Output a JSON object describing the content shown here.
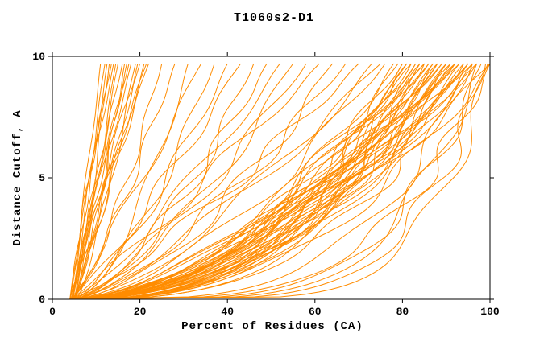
{
  "title": "T1060s2-D1",
  "chart_data": {
    "type": "line",
    "title": "T1060s2-D1",
    "xlabel": "Percent of Residues (CA)",
    "ylabel": "Distance Cutoff, A",
    "xlim": [
      0,
      100
    ],
    "ylim": [
      0,
      10
    ],
    "xticks": [
      0,
      20,
      40,
      60,
      80,
      100
    ],
    "yticks": [
      0,
      5,
      10
    ],
    "grid": false,
    "legend": "none",
    "curve_color": "#ff8c00",
    "axis_color": "#000000",
    "curve_top_y": 9.7,
    "curve_model": "x(y) = x0 + (x_top - x0) * (y/curve_top_y)^q ; one curve per model, percent of CA residues under distance cutoff",
    "curves": [
      [
        4,
        11,
        0.9
      ],
      [
        4.5,
        12,
        1
      ],
      [
        5,
        13,
        0.85
      ],
      [
        4,
        14,
        1.1
      ],
      [
        5,
        15,
        0.95
      ],
      [
        4.5,
        16,
        1.05
      ],
      [
        5,
        17,
        0.9
      ],
      [
        4,
        18,
        1
      ],
      [
        5.5,
        19,
        0.8
      ],
      [
        4.5,
        20,
        1.15
      ],
      [
        5,
        21,
        0.95
      ],
      [
        4,
        22,
        1
      ],
      [
        4.2,
        13.5,
        1.2
      ],
      [
        4.8,
        16.5,
        0.75
      ],
      [
        4.6,
        12.5,
        1
      ],
      [
        5.2,
        14.5,
        0.9
      ],
      [
        4.3,
        17.5,
        1.05
      ],
      [
        5,
        19.5,
        0.85
      ],
      [
        4.7,
        21.5,
        1.1
      ],
      [
        4,
        25,
        0.7
      ],
      [
        4.5,
        28,
        0.8
      ],
      [
        5,
        31,
        0.6
      ],
      [
        4,
        34,
        0.9
      ],
      [
        4.5,
        37,
        0.65
      ],
      [
        5,
        40,
        0.75
      ],
      [
        4,
        43,
        0.85
      ],
      [
        4.5,
        46,
        0.6
      ],
      [
        5,
        49,
        0.7
      ],
      [
        4,
        52,
        0.8
      ],
      [
        4.5,
        55,
        0.65
      ],
      [
        5,
        58,
        0.75
      ],
      [
        4,
        61,
        0.9
      ],
      [
        4.5,
        64,
        0.6
      ],
      [
        5,
        67,
        0.7
      ],
      [
        4,
        70,
        0.8
      ],
      [
        4.5,
        73,
        0.65
      ],
      [
        5,
        75,
        0.75
      ],
      [
        4,
        76,
        0.6
      ],
      [
        5,
        78,
        0.5
      ],
      [
        4.5,
        79,
        0.45
      ],
      [
        4,
        80,
        0.5
      ],
      [
        5,
        80,
        0.38
      ],
      [
        4.5,
        81,
        0.55
      ],
      [
        5.5,
        81,
        0.4
      ],
      [
        4,
        82,
        0.45
      ],
      [
        5,
        82,
        0.6
      ],
      [
        4.5,
        83,
        0.35
      ],
      [
        5.5,
        83,
        0.5
      ],
      [
        4,
        84,
        0.55
      ],
      [
        5,
        84,
        0.4
      ],
      [
        4.5,
        85,
        0.5
      ],
      [
        5.5,
        85,
        0.38
      ],
      [
        4,
        85,
        0.6
      ],
      [
        4,
        86,
        0.45
      ],
      [
        5,
        86,
        0.55
      ],
      [
        4.5,
        87,
        0.4
      ],
      [
        5.5,
        87,
        0.52
      ],
      [
        4,
        88,
        0.36
      ],
      [
        5,
        88,
        0.5
      ],
      [
        4.2,
        88,
        0.6
      ],
      [
        4.5,
        89,
        0.44
      ],
      [
        5.5,
        89,
        0.55
      ],
      [
        4,
        90,
        0.4
      ],
      [
        5,
        90,
        0.52
      ],
      [
        4.5,
        90,
        0.34
      ],
      [
        4,
        91,
        0.48
      ],
      [
        5,
        91,
        0.58
      ],
      [
        4.5,
        92,
        0.42
      ],
      [
        5.5,
        92,
        0.5
      ],
      [
        4,
        92,
        0.6
      ],
      [
        4,
        93,
        0.45
      ],
      [
        5,
        93,
        0.55
      ],
      [
        4.5,
        94,
        0.4
      ],
      [
        5.5,
        94,
        0.5
      ],
      [
        4,
        95,
        0.46
      ],
      [
        5,
        95,
        0.56
      ],
      [
        4.2,
        95,
        0.35
      ],
      [
        4.5,
        96,
        0.42
      ],
      [
        5.5,
        96,
        0.52
      ],
      [
        4,
        97,
        0.47
      ],
      [
        5,
        97,
        0.57
      ],
      [
        4,
        98,
        0.22
      ],
      [
        5,
        99,
        0.18
      ],
      [
        4,
        100,
        0.25
      ],
      [
        5,
        97,
        0.2
      ],
      [
        4,
        99.5,
        0.15
      ],
      [
        6,
        96,
        0.28
      ],
      [
        4,
        100,
        0.4
      ],
      [
        5,
        100,
        0.5
      ]
    ]
  }
}
